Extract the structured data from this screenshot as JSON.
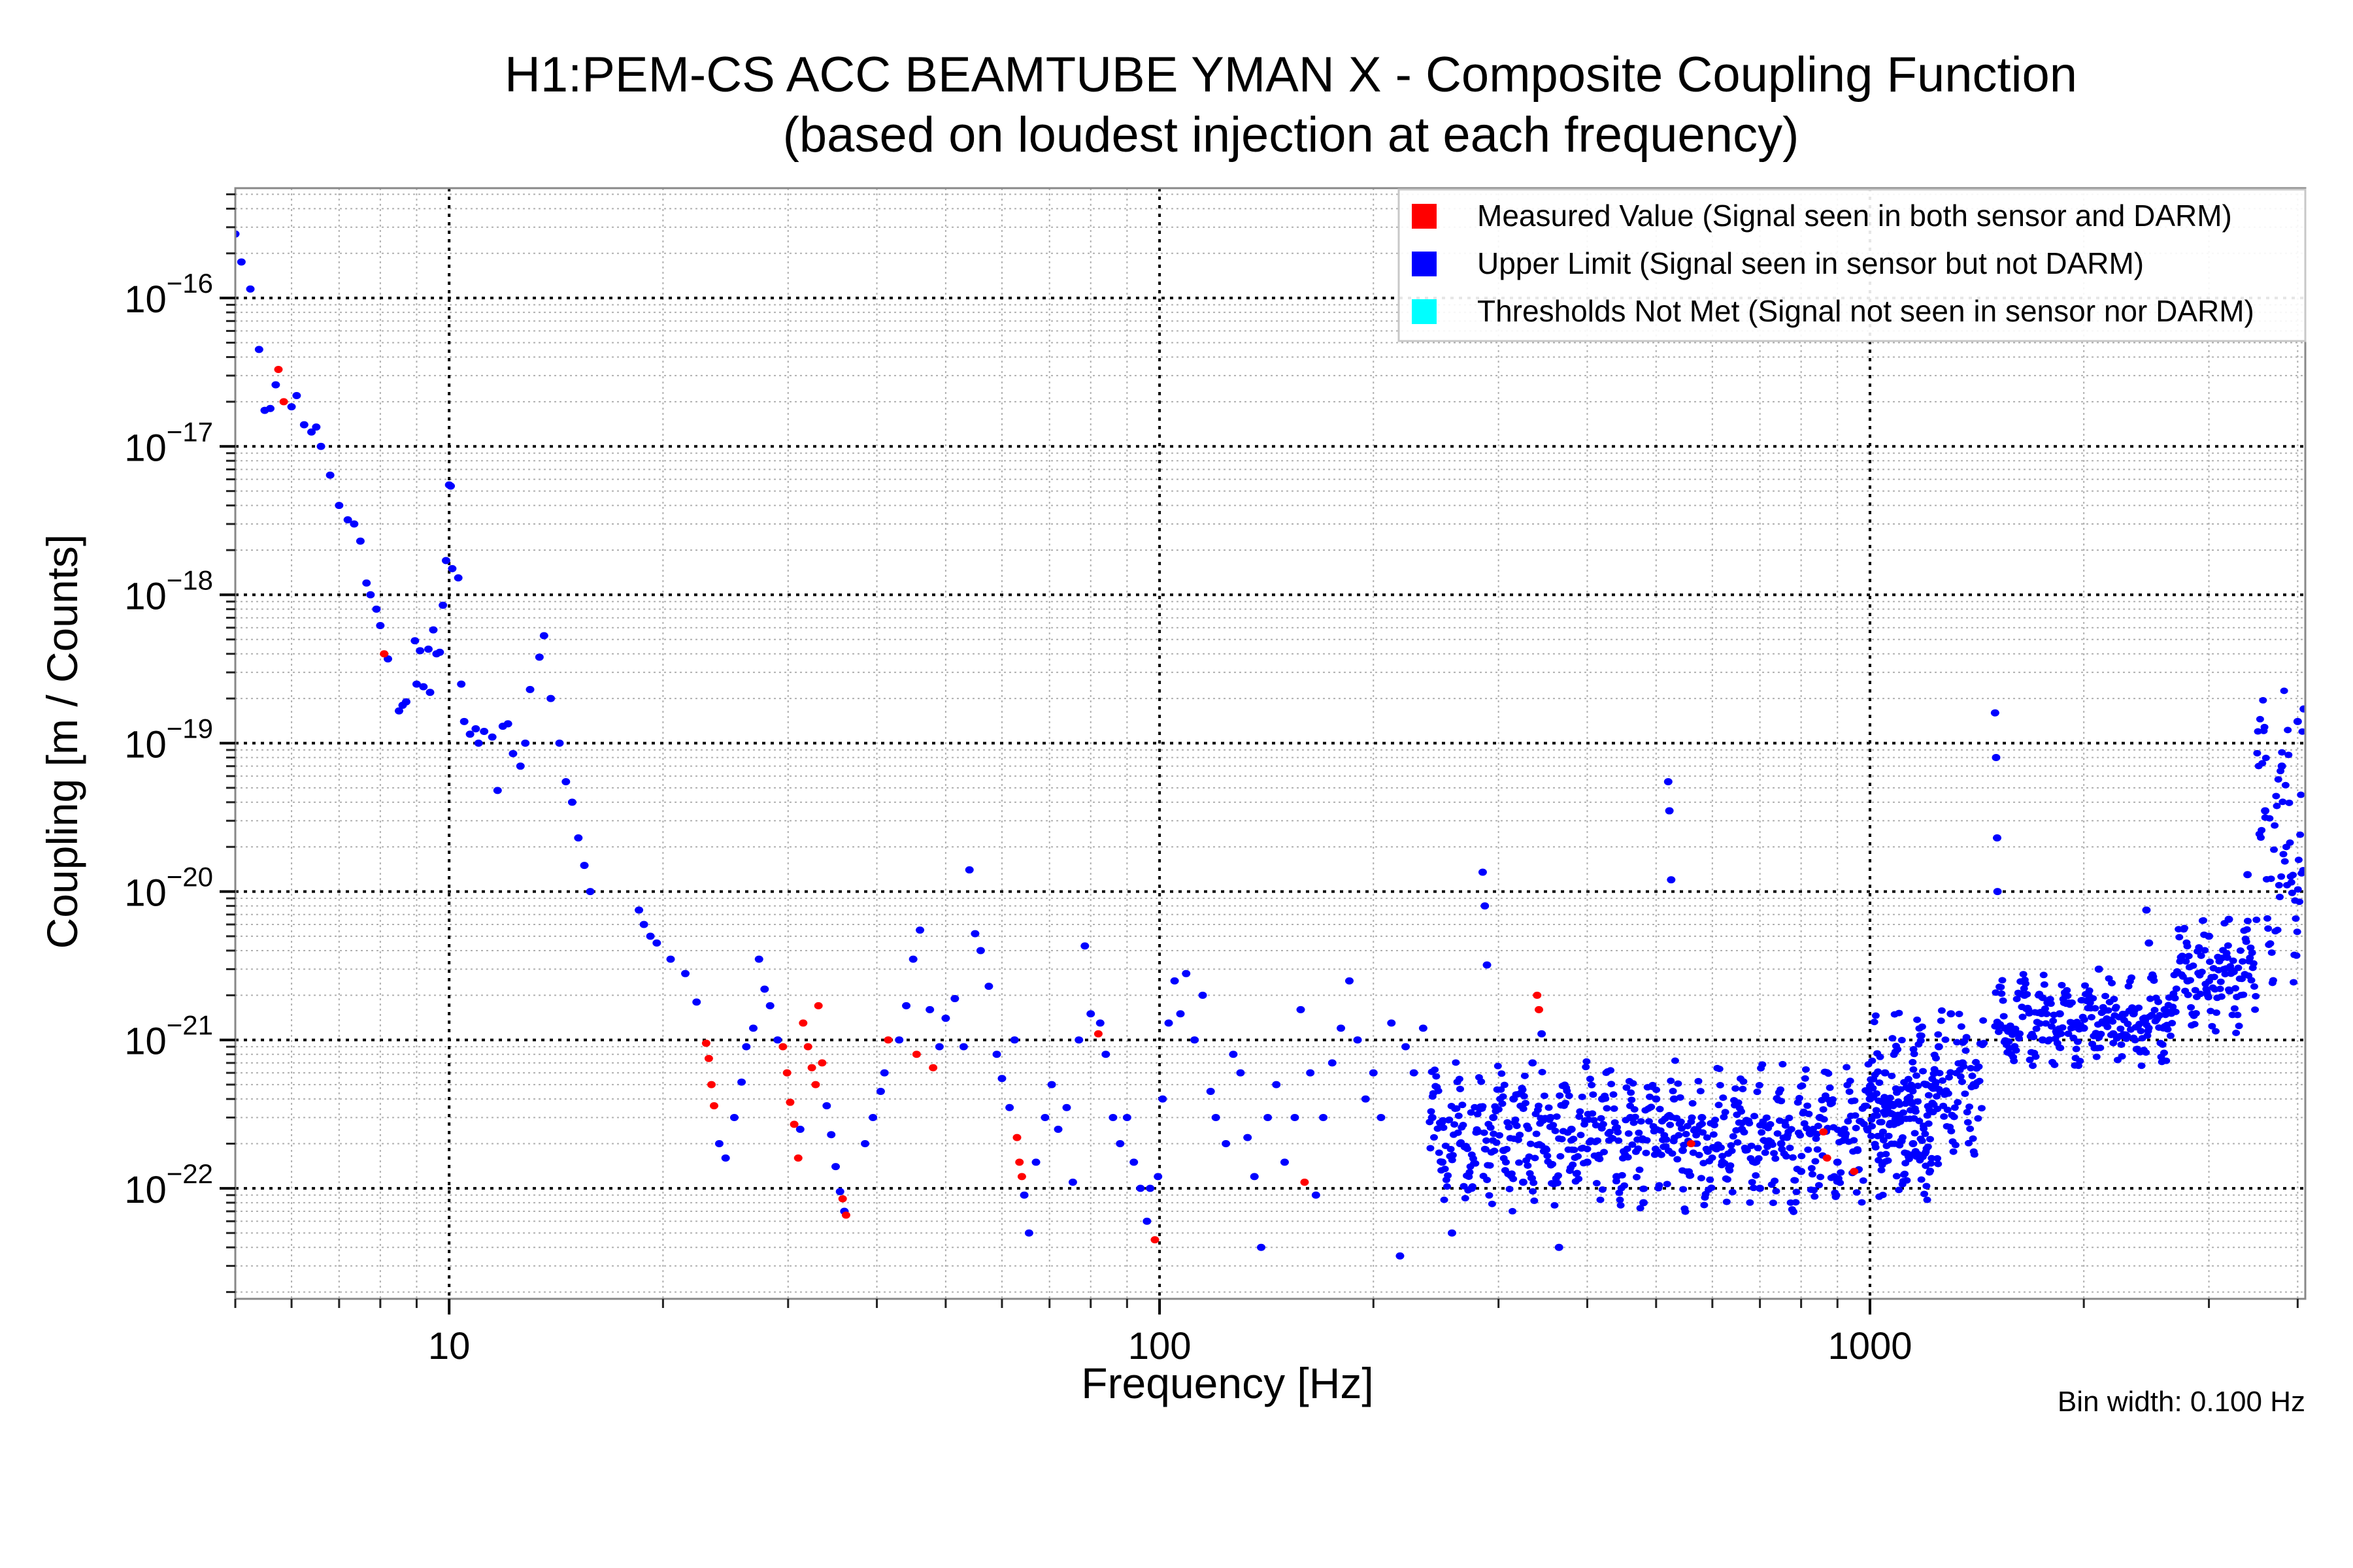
{
  "chart_data": {
    "type": "scatter",
    "title": "H1:PEM-CS ACC BEAMTUBE YMAN X - Composite Coupling Function",
    "subtitle": "(based on loudest injection at each frequency)",
    "xlabel": "Frequency [Hz]",
    "ylabel": "Coupling [m / Counts]",
    "xscale": "log",
    "yscale": "log",
    "xlim": [
      5,
      4100
    ],
    "ylim": [
      1.8e-23,
      5.5e-16
    ],
    "x_ticks": [
      {
        "value": 10,
        "label": "10"
      },
      {
        "value": 100,
        "label": "100"
      },
      {
        "value": 1000,
        "label": "1000"
      }
    ],
    "y_ticks": [
      {
        "value": 1e-16,
        "base": "10",
        "exp": "−16"
      },
      {
        "value": 1e-17,
        "base": "10",
        "exp": "−17"
      },
      {
        "value": 1e-18,
        "base": "10",
        "exp": "−18"
      },
      {
        "value": 1e-19,
        "base": "10",
        "exp": "−19"
      },
      {
        "value": 1e-20,
        "base": "10",
        "exp": "−20"
      },
      {
        "value": 1e-21,
        "base": "10",
        "exp": "−21"
      },
      {
        "value": 1e-22,
        "base": "10",
        "exp": "−22"
      }
    ],
    "grid": true,
    "legend_position": "top-right",
    "note": "Bin width: 0.100 Hz",
    "series": [
      {
        "name": "Measured Value (Signal seen in both sensor and DARM)",
        "color": "#ff0000",
        "points": [
          [
            5.75,
            3.3e-17
          ],
          [
            5.85,
            2e-17
          ],
          [
            8.1,
            4e-19
          ],
          [
            23.0,
            9.5e-22
          ],
          [
            23.2,
            7.5e-22
          ],
          [
            23.4,
            5e-22
          ],
          [
            23.6,
            3.6e-22
          ],
          [
            29.5,
            9e-22
          ],
          [
            29.9,
            6e-22
          ],
          [
            30.2,
            3.8e-22
          ],
          [
            30.6,
            2.7e-22
          ],
          [
            31.0,
            1.6e-22
          ],
          [
            31.5,
            1.3e-21
          ],
          [
            32.0,
            9e-22
          ],
          [
            32.4,
            6.5e-22
          ],
          [
            32.8,
            5e-22
          ],
          [
            33.1,
            1.7e-21
          ],
          [
            33.5,
            7e-22
          ],
          [
            35.8,
            8.5e-23
          ],
          [
            36.2,
            6.6e-23
          ],
          [
            41.5,
            1e-21
          ],
          [
            45.5,
            8e-22
          ],
          [
            48.0,
            6.5e-22
          ],
          [
            63.0,
            2.2e-22
          ],
          [
            63.5,
            1.5e-22
          ],
          [
            64.0,
            1.2e-22
          ],
          [
            82.0,
            1.1e-21
          ],
          [
            98.5,
            4.5e-23
          ],
          [
            160.0,
            1.1e-22
          ],
          [
            340.0,
            2e-21
          ],
          [
            342.0,
            1.6e-21
          ],
          [
            560.0,
            2e-22
          ],
          [
            860.0,
            2.4e-22
          ],
          [
            870.0,
            1.6e-22
          ],
          [
            950.0,
            1.3e-22
          ]
        ]
      },
      {
        "name": "Upper Limit (Signal seen in sensor but not DARM)",
        "color": "#0000ff",
        "points": [
          [
            5.0,
            2.7e-16
          ],
          [
            5.1,
            1.75e-16
          ],
          [
            5.25,
            1.15e-16
          ],
          [
            5.4,
            4.5e-17
          ],
          [
            5.5,
            1.75e-17
          ],
          [
            5.6,
            1.8e-17
          ],
          [
            5.7,
            2.6e-17
          ],
          [
            6.0,
            1.85e-17
          ],
          [
            6.1,
            2.2e-17
          ],
          [
            6.25,
            1.4e-17
          ],
          [
            6.4,
            1.25e-17
          ],
          [
            6.5,
            1.35e-17
          ],
          [
            6.6,
            1e-17
          ],
          [
            6.8,
            6.4e-18
          ],
          [
            7.0,
            4e-18
          ],
          [
            7.2,
            3.2e-18
          ],
          [
            7.35,
            3e-18
          ],
          [
            7.5,
            2.3e-18
          ],
          [
            7.65,
            1.2e-18
          ],
          [
            7.75,
            1e-18
          ],
          [
            7.9,
            8e-19
          ],
          [
            8.0,
            6.2e-19
          ],
          [
            8.2,
            3.7e-19
          ],
          [
            8.5,
            1.65e-19
          ],
          [
            8.6,
            1.8e-19
          ],
          [
            8.7,
            1.9e-19
          ],
          [
            8.95,
            4.9e-19
          ],
          [
            9.0,
            2.5e-19
          ],
          [
            9.1,
            4.2e-19
          ],
          [
            9.2,
            2.4e-19
          ],
          [
            9.35,
            4.3e-19
          ],
          [
            9.4,
            2.2e-19
          ],
          [
            9.5,
            5.8e-19
          ],
          [
            9.6,
            4e-19
          ],
          [
            9.7,
            4.1e-19
          ],
          [
            9.8,
            8.5e-19
          ],
          [
            9.9,
            1.7e-18
          ],
          [
            10.0,
            5.5e-18
          ],
          [
            10.05,
            5.4e-18
          ],
          [
            10.1,
            1.5e-18
          ],
          [
            10.3,
            1.3e-18
          ],
          [
            10.4,
            2.5e-19
          ],
          [
            10.5,
            1.4e-19
          ],
          [
            10.7,
            1.15e-19
          ],
          [
            10.9,
            1.25e-19
          ],
          [
            11.0,
            1e-19
          ],
          [
            11.2,
            1.2e-19
          ],
          [
            11.5,
            1.1e-19
          ],
          [
            11.7,
            4.8e-20
          ],
          [
            11.9,
            1.3e-19
          ],
          [
            12.1,
            1.35e-19
          ],
          [
            12.3,
            8.5e-20
          ],
          [
            12.6,
            7e-20
          ],
          [
            12.8,
            1e-19
          ],
          [
            13.0,
            2.3e-19
          ],
          [
            13.4,
            3.8e-19
          ],
          [
            13.6,
            5.3e-19
          ],
          [
            13.9,
            2e-19
          ],
          [
            14.3,
            1e-19
          ],
          [
            14.6,
            5.5e-20
          ],
          [
            14.9,
            4e-20
          ],
          [
            15.2,
            2.3e-20
          ],
          [
            15.5,
            1.5e-20
          ],
          [
            15.8,
            1e-20
          ],
          [
            18.5,
            7.5e-21
          ],
          [
            18.8,
            6e-21
          ],
          [
            19.2,
            5e-21
          ],
          [
            19.6,
            4.5e-21
          ],
          [
            20.5,
            3.5e-21
          ],
          [
            21.5,
            2.8e-21
          ],
          [
            22.3,
            1.8e-21
          ],
          [
            24.0,
            2e-22
          ],
          [
            24.5,
            1.6e-22
          ],
          [
            25.2,
            3e-22
          ],
          [
            25.8,
            5.2e-22
          ],
          [
            26.2,
            9e-22
          ],
          [
            26.8,
            1.2e-21
          ],
          [
            27.3,
            3.5e-21
          ],
          [
            27.8,
            2.2e-21
          ],
          [
            28.3,
            1.7e-21
          ],
          [
            29.0,
            1e-21
          ],
          [
            31.2,
            2.5e-22
          ],
          [
            34.0,
            3.6e-22
          ],
          [
            34.5,
            2.3e-22
          ],
          [
            35.0,
            1.4e-22
          ],
          [
            35.5,
            9.5e-23
          ],
          [
            36.0,
            7e-23
          ],
          [
            38.5,
            2e-22
          ],
          [
            39.5,
            3e-22
          ],
          [
            40.5,
            4.5e-22
          ],
          [
            41.0,
            6e-22
          ],
          [
            43.0,
            1e-21
          ],
          [
            44.0,
            1.7e-21
          ],
          [
            45.0,
            3.5e-21
          ],
          [
            46.0,
            5.5e-21
          ],
          [
            47.5,
            1.6e-21
          ],
          [
            49.0,
            9e-22
          ],
          [
            50.0,
            1.4e-21
          ],
          [
            51.5,
            1.9e-21
          ],
          [
            53.0,
            9e-22
          ],
          [
            54.0,
            1.4e-20
          ],
          [
            55.0,
            5.2e-21
          ],
          [
            56.0,
            4e-21
          ],
          [
            57.5,
            2.3e-21
          ],
          [
            59.0,
            8e-22
          ],
          [
            60.0,
            5.5e-22
          ],
          [
            61.5,
            3.5e-22
          ],
          [
            62.5,
            1e-21
          ],
          [
            64.5,
            9e-23
          ],
          [
            65.5,
            5e-23
          ],
          [
            67.0,
            1.5e-22
          ],
          [
            69.0,
            3e-22
          ],
          [
            70.5,
            5e-22
          ],
          [
            72.0,
            2.5e-22
          ],
          [
            74.0,
            3.5e-22
          ],
          [
            75.5,
            1.1e-22
          ],
          [
            77.0,
            1e-21
          ],
          [
            78.5,
            4.3e-21
          ],
          [
            80.0,
            1.5e-21
          ],
          [
            82.5,
            1.3e-21
          ],
          [
            84.0,
            8e-22
          ],
          [
            86.0,
            3e-22
          ],
          [
            88.0,
            2e-22
          ],
          [
            90.0,
            3e-22
          ],
          [
            92.0,
            1.5e-22
          ],
          [
            94.0,
            1e-22
          ],
          [
            96.0,
            6e-23
          ],
          [
            97.0,
            1e-22
          ],
          [
            99.5,
            1.2e-22
          ],
          [
            101.0,
            4e-22
          ],
          [
            103.0,
            1.3e-21
          ],
          [
            105.0,
            2.5e-21
          ],
          [
            107.0,
            1.5e-21
          ],
          [
            109.0,
            2.8e-21
          ],
          [
            112.0,
            1e-21
          ],
          [
            115.0,
            2e-21
          ],
          [
            118.0,
            4.5e-22
          ],
          [
            120.0,
            3e-22
          ],
          [
            124.0,
            2e-22
          ],
          [
            127.0,
            8e-22
          ],
          [
            130.0,
            6e-22
          ],
          [
            133.0,
            2.2e-22
          ],
          [
            136.0,
            1.2e-22
          ],
          [
            139.0,
            4e-23
          ],
          [
            142.0,
            3e-22
          ],
          [
            146.0,
            5e-22
          ],
          [
            150.0,
            1.5e-22
          ],
          [
            155.0,
            3e-22
          ],
          [
            158.0,
            1.6e-21
          ],
          [
            163.0,
            6e-22
          ],
          [
            166.0,
            9e-23
          ],
          [
            170.0,
            3e-22
          ],
          [
            175.0,
            7e-22
          ],
          [
            180.0,
            1.2e-21
          ],
          [
            185.0,
            2.5e-21
          ],
          [
            190.0,
            1e-21
          ],
          [
            195.0,
            4e-22
          ],
          [
            200.0,
            6e-22
          ],
          [
            205.0,
            3e-22
          ],
          [
            212.0,
            1.3e-21
          ],
          [
            218.0,
            3.5e-23
          ],
          [
            222.0,
            9e-22
          ],
          [
            228.0,
            6e-22
          ],
          [
            235.0,
            1.2e-21
          ],
          [
            242.0,
            3e-22
          ],
          [
            250.0,
            1.5e-22
          ],
          [
            258.0,
            5e-23
          ],
          [
            265.0,
            2e-22
          ],
          [
            275.0,
            1e-22
          ],
          [
            285.0,
            1.35e-20
          ],
          [
            287.0,
            8e-21
          ],
          [
            289.0,
            3.2e-21
          ],
          [
            295.0,
            3e-22
          ],
          [
            305.0,
            1.8e-22
          ],
          [
            315.0,
            4e-22
          ],
          [
            325.0,
            1.1e-22
          ],
          [
            335.0,
            7e-22
          ],
          [
            345.0,
            1.1e-21
          ],
          [
            355.0,
            3e-22
          ],
          [
            365.0,
            4e-23
          ],
          [
            380.0,
            2.5e-22
          ],
          [
            400.0,
            1.5e-22
          ],
          [
            420.0,
            4e-22
          ],
          [
            440.0,
            1.2e-22
          ],
          [
            460.0,
            3e-22
          ],
          [
            480.0,
            8e-23
          ],
          [
            500.0,
            4e-22
          ],
          [
            520.0,
            5.5e-20
          ],
          [
            522.0,
            3.5e-20
          ],
          [
            525.0,
            1.2e-20
          ],
          [
            530.0,
            4e-22
          ],
          [
            545.0,
            1.8e-22
          ],
          [
            580.0,
            3e-22
          ],
          [
            620.0,
            1.5e-22
          ],
          [
            660.0,
            2.5e-22
          ],
          [
            700.0,
            1e-22
          ],
          [
            750.0,
            2e-22
          ],
          [
            800.0,
            1.3e-22
          ],
          [
            850.0,
            3e-22
          ],
          [
            900.0,
            1.5e-22
          ],
          [
            960.0,
            1.8e-22
          ],
          [
            1000.0,
            4e-22
          ],
          [
            1050.0,
            6e-22
          ],
          [
            1100.0,
            3e-22
          ],
          [
            1150.0,
            2e-22
          ],
          [
            1200.0,
            5e-22
          ],
          [
            1250.0,
            9e-22
          ],
          [
            1300.0,
            1.5e-21
          ],
          [
            1350.0,
            7e-22
          ],
          [
            1400.0,
            5e-22
          ],
          [
            1500.0,
            1.6e-19
          ],
          [
            1505.0,
            8e-20
          ],
          [
            1510.0,
            2.3e-20
          ],
          [
            1512.0,
            1e-20
          ],
          [
            1550.0,
            1.2e-21
          ],
          [
            1650.0,
            2e-21
          ],
          [
            1750.0,
            1e-21
          ],
          [
            1850.0,
            1.5e-21
          ],
          [
            2000.0,
            1.2e-21
          ],
          [
            2100.0,
            3e-21
          ],
          [
            2200.0,
            1.1e-21
          ],
          [
            2350.0,
            1.5e-21
          ],
          [
            2450.0,
            7.5e-21
          ],
          [
            2470.0,
            4.5e-21
          ],
          [
            2600.0,
            1.6e-21
          ],
          [
            2800.0,
            2.5e-21
          ],
          [
            3000.0,
            5e-21
          ],
          [
            3200.0,
            6.5e-21
          ],
          [
            3400.0,
            1.3e-20
          ],
          [
            3600.0,
            3.5e-20
          ],
          [
            3800.0,
            7e-20
          ],
          [
            4000.0,
            1.4e-19
          ],
          [
            4080.0,
            1.7e-19
          ]
        ],
        "bands": [
          {
            "f_start": 240,
            "f_end": 1250,
            "low": 1e-22,
            "high": 5e-22
          },
          {
            "f_start": 1000,
            "f_end": 1450,
            "low": 2e-22,
            "high": 1.2e-21
          },
          {
            "f_start": 1500,
            "f_end": 2700,
            "low": 8e-22,
            "high": 2.2e-21
          },
          {
            "f_start": 2700,
            "f_end": 3500,
            "low": 1.5e-21,
            "high": 5e-21
          },
          {
            "f_start": 3500,
            "f_end": 4080,
            "low": 5e-21,
            "high": 1.2e-19
          }
        ]
      },
      {
        "name": "Thresholds Not Met (Signal not seen in sensor nor DARM)",
        "color": "#00ffff",
        "points": []
      }
    ]
  }
}
